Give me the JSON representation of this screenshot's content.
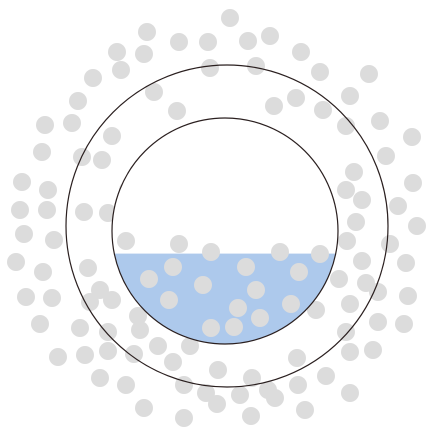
{
  "colors": {
    "background": "#ffffff",
    "particle": "#dcdcdc",
    "liquid": "#adc9ec",
    "outline": "#2a1f1f"
  },
  "liquid_fill_level": 0.4
}
